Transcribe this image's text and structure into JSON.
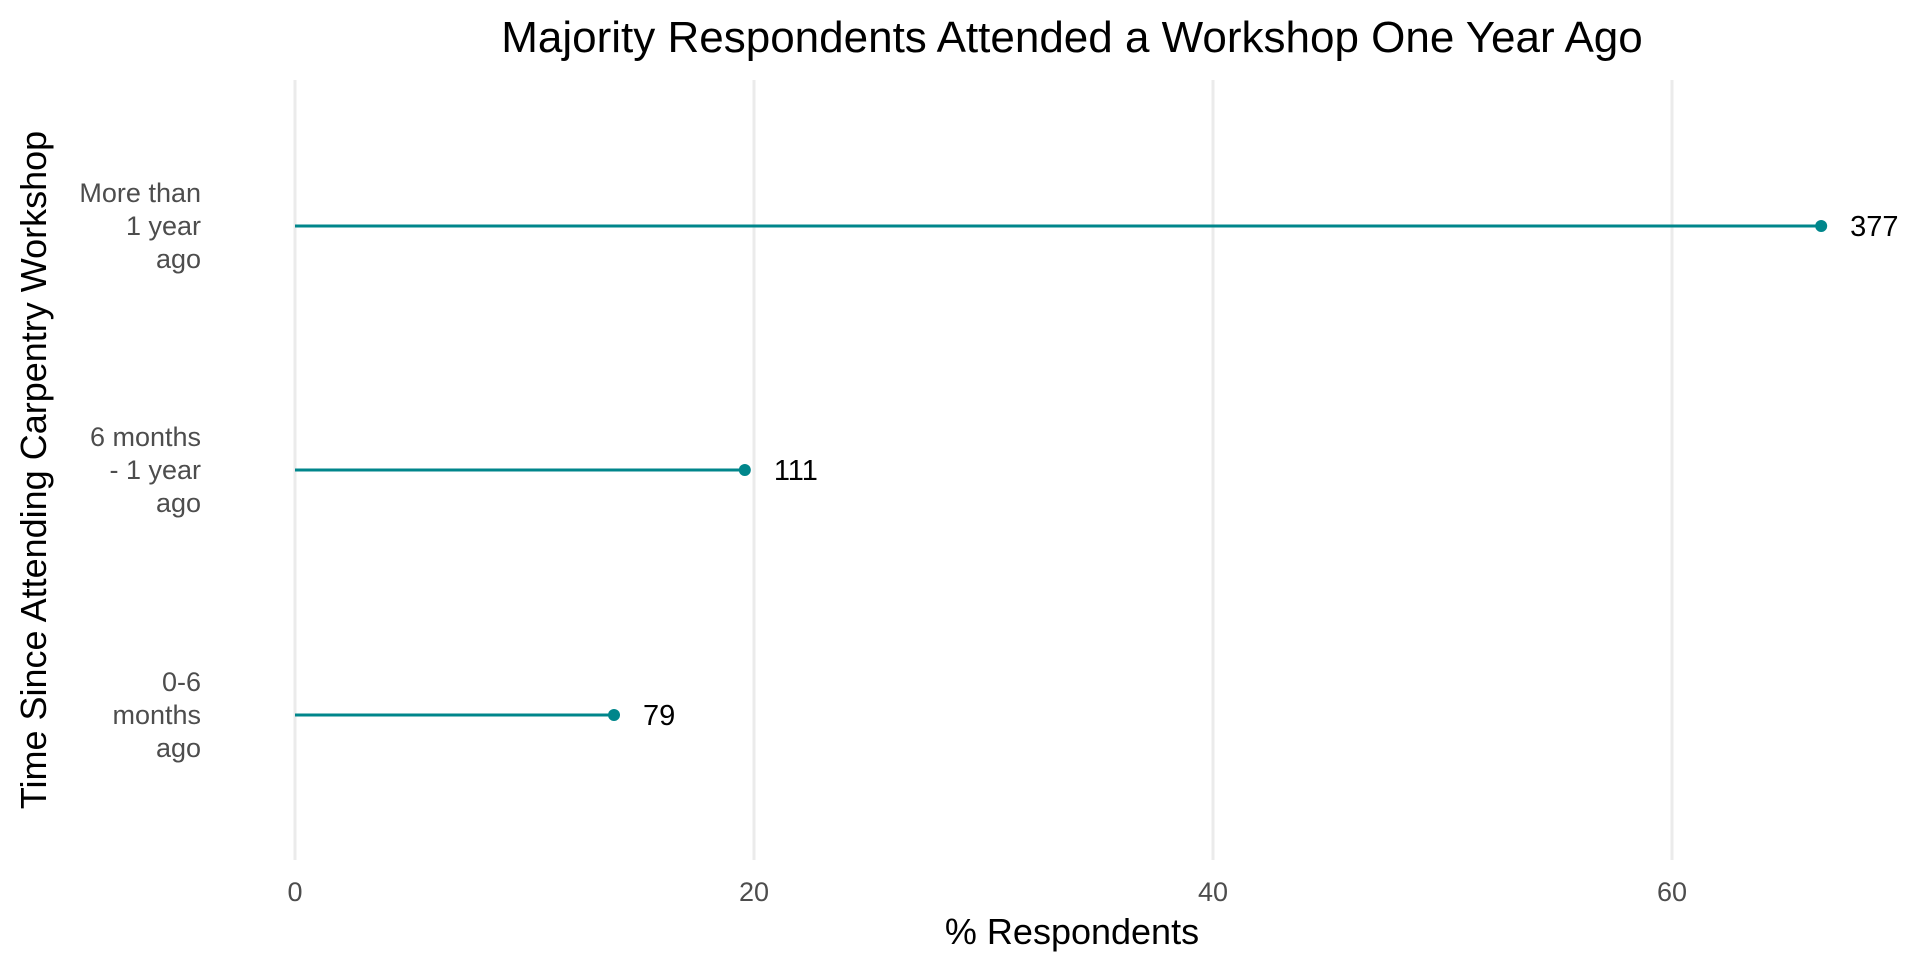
{
  "chart_data": {
    "type": "lollipop",
    "title": "Majority Respondents Attended a Workshop One Year Ago",
    "xlabel": "% Respondents",
    "ylabel": "Time Since Attending Carpentry Workshop",
    "xlim": [
      0,
      70
    ],
    "xticks": [
      0,
      20,
      40,
      60
    ],
    "grid": "vertical major gridlines",
    "categories": [
      {
        "label_lines": [
          "More than",
          "1 year",
          "ago"
        ],
        "percent": 66.5,
        "count_label": "377"
      },
      {
        "label_lines": [
          "6 months",
          "- 1 year",
          "ago"
        ],
        "percent": 19.6,
        "count_label": "111"
      },
      {
        "label_lines": [
          "0-6",
          "months",
          "ago"
        ],
        "percent": 13.9,
        "count_label": "79"
      }
    ],
    "colors": {
      "series": "#00868B",
      "grid": "#ebebeb",
      "tick_text": "#4d4d4d",
      "text": "#000000"
    }
  }
}
